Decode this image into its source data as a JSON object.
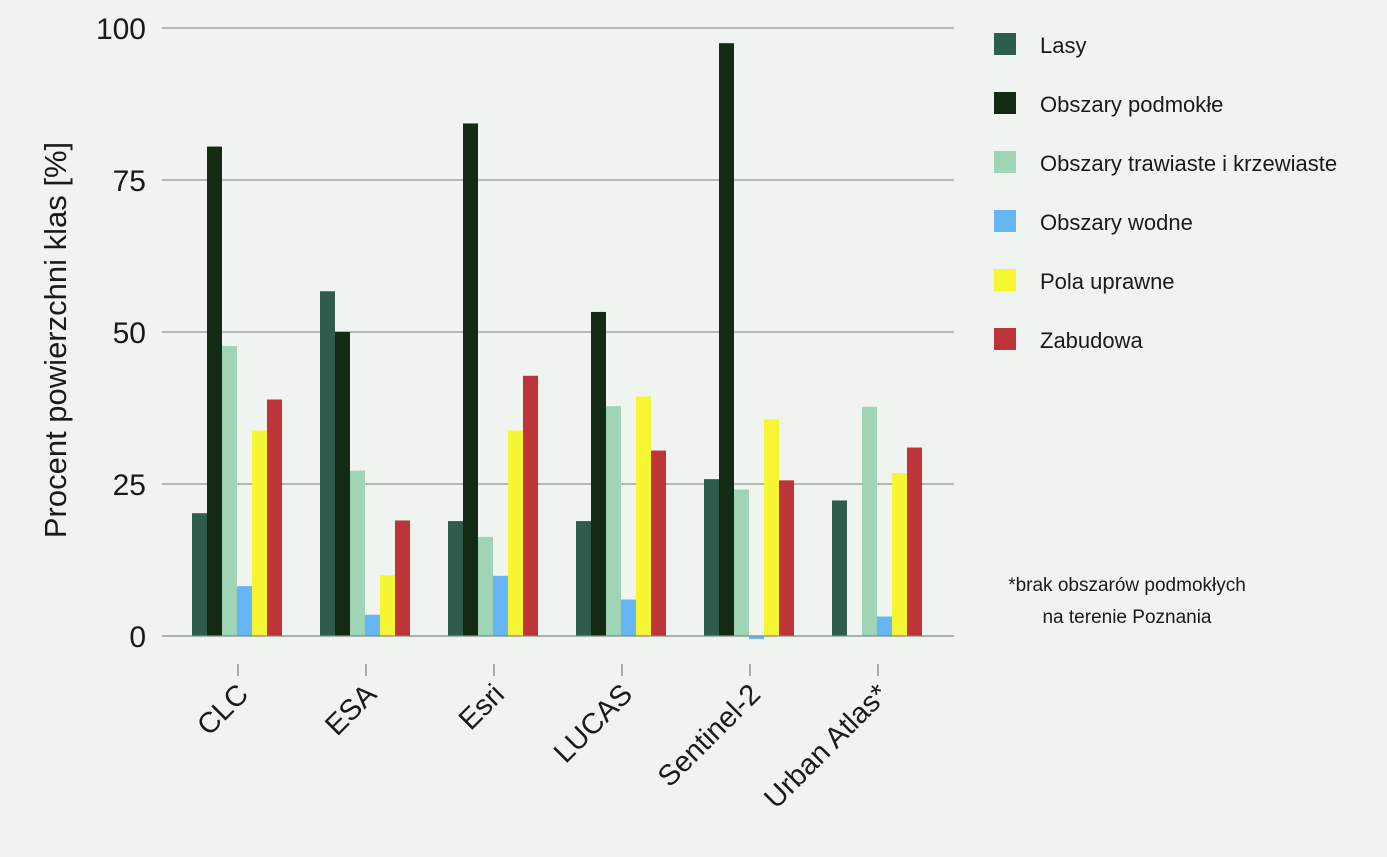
{
  "chart_data": {
    "type": "bar",
    "title": "",
    "xlabel": "",
    "ylabel": "Procent powierzchni klas [%]",
    "ylim": [
      0,
      100
    ],
    "yticks": [
      0,
      25,
      50,
      75,
      100
    ],
    "grid": true,
    "legend_position": "right",
    "categories": [
      "CLC",
      "ESA",
      "Esri",
      "LUCAS",
      "Sentinel-2",
      "Urban Atlas*"
    ],
    "series": [
      {
        "name": "Lasy",
        "color": "#2e5e4b",
        "values": [
          20.2,
          56.7,
          18.9,
          18.9,
          25.8,
          22.3
        ]
      },
      {
        "name": "Obszary podmokłe",
        "color": "#132b12",
        "values": [
          80.5,
          50.0,
          84.3,
          53.3,
          97.5,
          null
        ]
      },
      {
        "name": "Obszary trawiaste i krzewiaste",
        "color": "#9fd5b5",
        "values": [
          47.7,
          27.2,
          16.3,
          37.8,
          24.1,
          37.7
        ]
      },
      {
        "name": "Obszary wodne",
        "color": "#66b5f6",
        "values": [
          8.2,
          3.5,
          9.9,
          6.0,
          -0.5,
          3.2
        ]
      },
      {
        "name": "Pola uprawne",
        "color": "#f5f532",
        "values": [
          33.8,
          10.0,
          33.8,
          39.4,
          35.6,
          26.8
        ]
      },
      {
        "name": "Zabudowa",
        "color": "#bd353a",
        "values": [
          38.9,
          19.0,
          42.8,
          30.5,
          25.6,
          31.0
        ]
      }
    ],
    "annotation": [
      "*brak obszarów podmokłych",
      "na terenie Poznania"
    ]
  }
}
